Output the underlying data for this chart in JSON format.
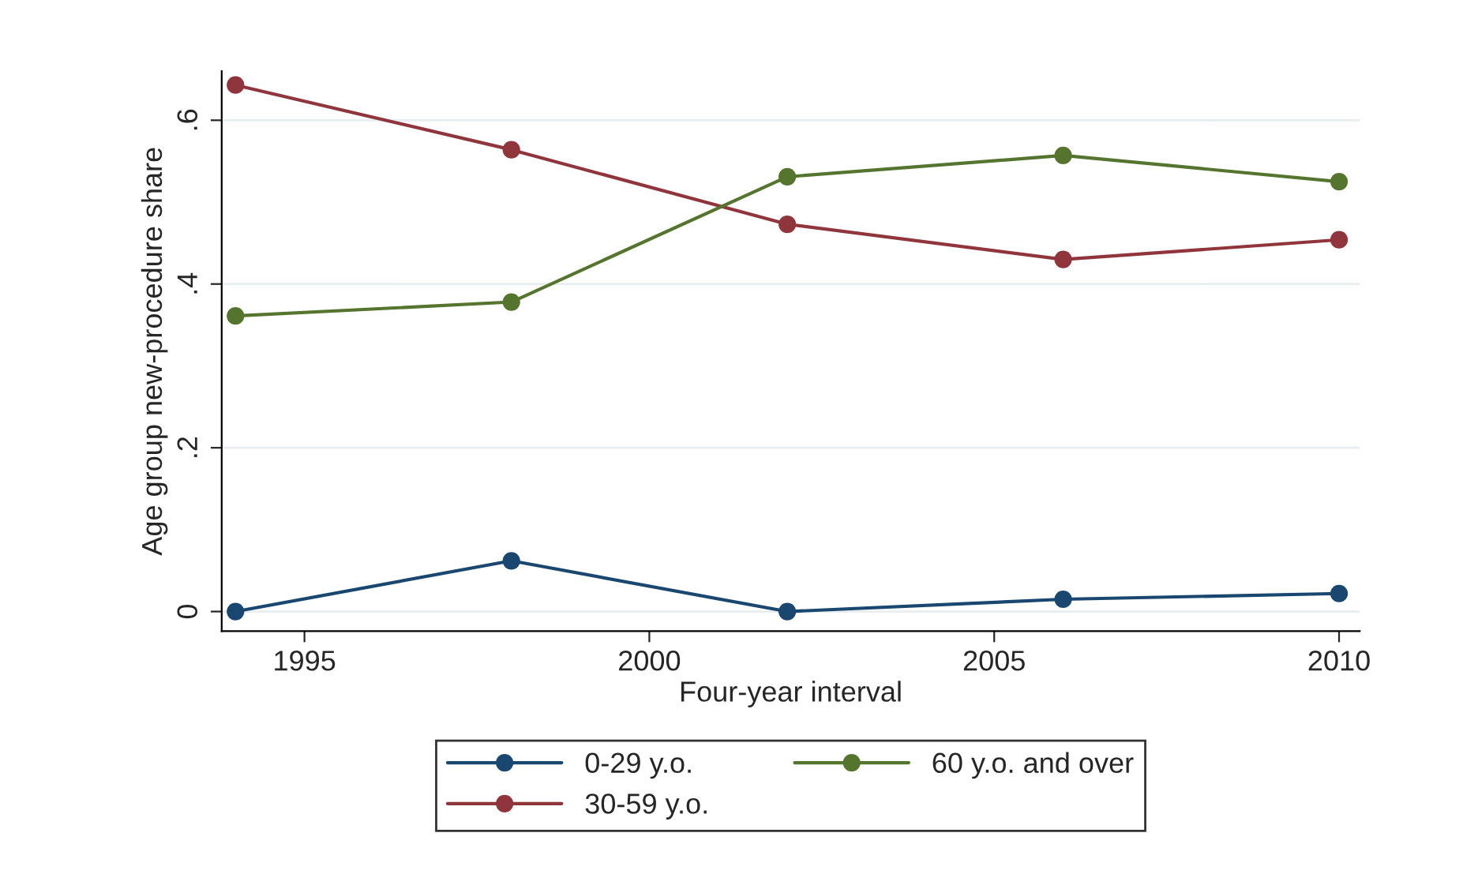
{
  "chart_data": {
    "type": "line",
    "xlabel": "Four-year interval",
    "ylabel": "Age group new-procedure share",
    "x": [
      1994,
      1998,
      2002,
      2006,
      2010
    ],
    "series": [
      {
        "name": "0-29 y.o.",
        "color": "#1a476f",
        "values": [
          0,
          0.062,
          0,
          0.015,
          0.022
        ]
      },
      {
        "name": "30-59 y.o.",
        "color": "#90353b",
        "values": [
          0.643,
          0.564,
          0.473,
          0.43,
          0.454
        ]
      },
      {
        "name": "60 y.o. and over",
        "color": "#55752f",
        "values": [
          0.361,
          0.378,
          0.531,
          0.557,
          0.525
        ]
      }
    ],
    "xlim": [
      1993.8,
      2010.3
    ],
    "xticks": [
      1995,
      2000,
      2005,
      2010
    ],
    "ylim": [
      -0.024,
      0.66
    ],
    "yticks": [
      {
        "value": 0,
        "label": "0"
      },
      {
        "value": 0.2,
        "label": ".2"
      },
      {
        "value": 0.4,
        "label": ".4"
      },
      {
        "value": 0.6,
        "label": ".6"
      }
    ],
    "grid": "y",
    "legend": "bottom",
    "marker": "circle",
    "line_style": "solid"
  }
}
